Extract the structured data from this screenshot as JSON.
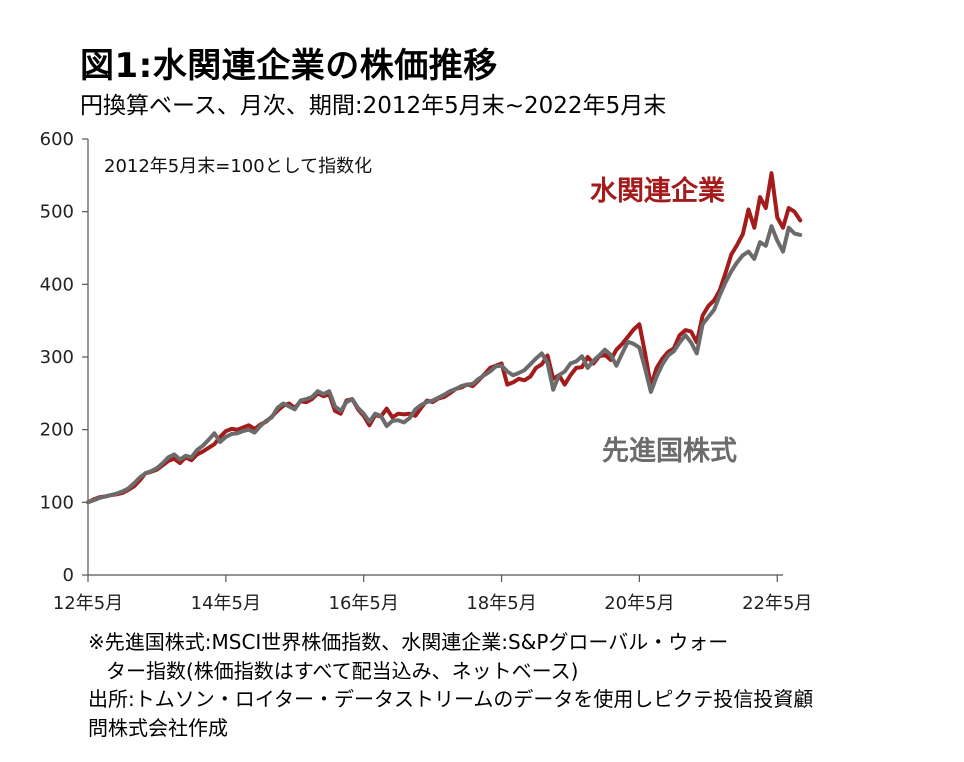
{
  "title": "図1:水関連企業の株価推移",
  "subtitle": "円換算ベース、月次、期間:2012年5月末~2022年5月末",
  "notes": [
    "※先進国株式:MSCI世界株価指数、水関連企業:S&Pグローバル・ウォー",
    "ター指数(株価指数はすべて配当込み、ネットベース)",
    "出所:トムソン・ロイター・データストリームのデータを使用しピクテ投信投資顧",
    "問株式会社作成"
  ],
  "chart_data": {
    "type": "line",
    "annotation": "2012年5月末=100として指数化",
    "ylim": [
      0,
      600
    ],
    "yticks": [
      0,
      100,
      200,
      300,
      400,
      500,
      600
    ],
    "xticks": [
      {
        "label": "12年5月",
        "month": 0
      },
      {
        "label": "14年5月",
        "month": 24
      },
      {
        "label": "16年5月",
        "month": 48
      },
      {
        "label": "18年5月",
        "month": 72
      },
      {
        "label": "20年5月",
        "month": 96
      },
      {
        "label": "22年5月",
        "month": 120
      }
    ],
    "grid": false,
    "series": [
      {
        "name": "水関連企業",
        "color": "#a31b1b",
        "label_position": "top-right",
        "values": [
          100,
          104,
          107,
          108,
          110,
          111,
          113,
          117,
          122,
          130,
          140,
          142,
          145,
          151,
          157,
          160,
          154,
          162,
          158,
          166,
          170,
          175,
          180,
          190,
          198,
          201,
          200,
          203,
          206,
          201,
          207,
          211,
          218,
          226,
          233,
          236,
          230,
          239,
          238,
          242,
          250,
          246,
          249,
          226,
          222,
          240,
          242,
          228,
          219,
          206,
          220,
          218,
          229,
          217,
          222,
          221,
          222,
          219,
          230,
          240,
          238,
          243,
          245,
          250,
          256,
          258,
          262,
          260,
          268,
          276,
          285,
          288,
          291,
          262,
          265,
          270,
          268,
          273,
          285,
          290,
          302,
          270,
          275,
          262,
          275,
          285,
          286,
          300,
          291,
          301,
          303,
          296,
          310,
          318,
          328,
          338,
          345,
          305,
          260,
          285,
          298,
          307,
          312,
          330,
          337,
          335,
          320,
          357,
          370,
          378,
          392,
          416,
          441,
          454,
          469,
          503,
          478,
          520,
          505,
          553,
          492,
          478,
          505,
          500,
          488
        ]
      },
      {
        "name": "先進国株式",
        "color": "#6b6b6b",
        "label_position": "right",
        "values": [
          100,
          103,
          106,
          108,
          110,
          112,
          115,
          119,
          126,
          134,
          140,
          143,
          147,
          154,
          162,
          166,
          159,
          164,
          162,
          172,
          178,
          186,
          195,
          183,
          190,
          194,
          195,
          198,
          200,
          196,
          205,
          212,
          217,
          230,
          236,
          232,
          228,
          240,
          242,
          245,
          253,
          249,
          253,
          232,
          226,
          238,
          242,
          230,
          222,
          211,
          222,
          219,
          205,
          212,
          213,
          210,
          216,
          228,
          234,
          238,
          240,
          244,
          248,
          253,
          256,
          260,
          262,
          263,
          270,
          275,
          280,
          287,
          288,
          280,
          275,
          278,
          282,
          290,
          298,
          305,
          292,
          255,
          275,
          280,
          291,
          294,
          301,
          285,
          295,
          302,
          310,
          303,
          288,
          305,
          321,
          318,
          313,
          284,
          252,
          273,
          290,
          302,
          308,
          320,
          330,
          320,
          305,
          345,
          355,
          365,
          385,
          403,
          418,
          430,
          440,
          445,
          435,
          458,
          453,
          480,
          460,
          445,
          478,
          470,
          468
        ]
      }
    ]
  }
}
